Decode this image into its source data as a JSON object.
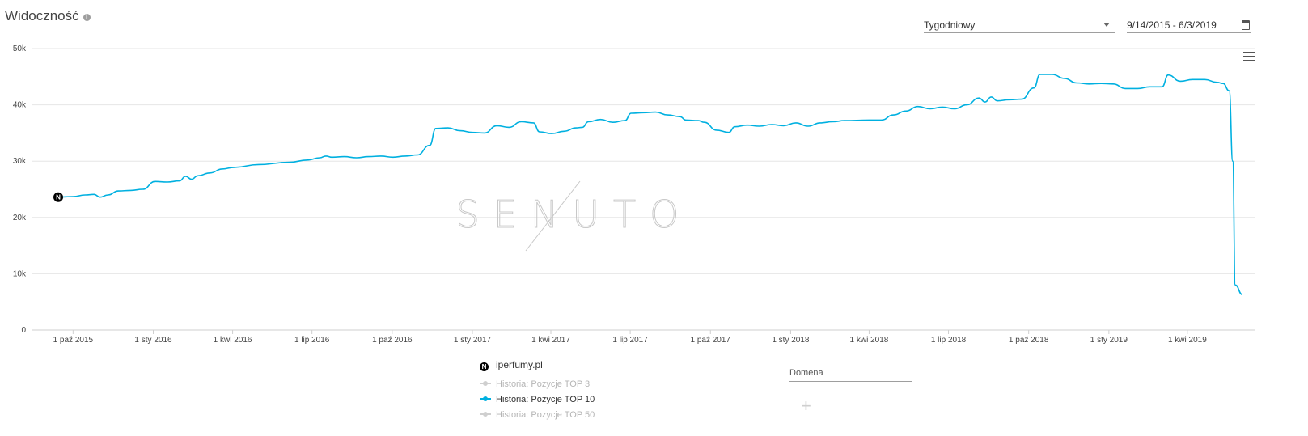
{
  "header": {
    "title": "Widoczność",
    "info_icon": "info-icon",
    "period_select": {
      "value": "Tygodniowy"
    },
    "date_range": {
      "value": "9/14/2015 - 6/3/2019",
      "icon": "calendar-icon"
    },
    "menu_icon": "hamburger-menu-icon"
  },
  "colors": {
    "series": "#00b0e0",
    "grid": "#e6e6e6",
    "axis_text": "#444444",
    "watermark": "#c8c8c8"
  },
  "watermark": "SENUTO",
  "chart_data": {
    "type": "line",
    "title": "Widoczność",
    "x_axis": {
      "type": "date",
      "range": [
        "2015-09-14",
        "2019-06-03"
      ],
      "tick_labels": [
        "1 paź 2015",
        "1 sty 2016",
        "1 kwi 2016",
        "1 lip 2016",
        "1 paź 2016",
        "1 sty 2017",
        "1 kwi 2017",
        "1 lip 2017",
        "1 paź 2017",
        "1 sty 2018",
        "1 kwi 2018",
        "1 lip 2018",
        "1 paź 2018",
        "1 sty 2019",
        "1 kwi 2019"
      ],
      "tick_dates": [
        "2015-10-01",
        "2016-01-01",
        "2016-04-01",
        "2016-07-01",
        "2016-10-01",
        "2017-01-01",
        "2017-04-01",
        "2017-07-01",
        "2017-10-01",
        "2018-01-01",
        "2018-04-01",
        "2018-07-01",
        "2018-10-01",
        "2019-01-01",
        "2019-04-01"
      ]
    },
    "y_axis": {
      "range": [
        0,
        50000
      ],
      "ticks": [
        0,
        10000,
        20000,
        30000,
        40000,
        50000
      ],
      "tick_labels": [
        "0",
        "10k",
        "20k",
        "30k",
        "40k",
        "50k"
      ]
    },
    "grid": true,
    "legend_position": "bottom-center",
    "series": [
      {
        "name": "Historia: Pozycje TOP 10",
        "color": "#00b0e0",
        "annotation": {
          "date": "2015-09-14",
          "value": 23600,
          "label": "N"
        },
        "points": [
          [
            "2015-09-14",
            23600
          ],
          [
            "2015-10-01",
            23700
          ],
          [
            "2015-10-15",
            24000
          ],
          [
            "2015-10-25",
            24100
          ],
          [
            "2015-11-01",
            23600
          ],
          [
            "2015-11-10",
            24000
          ],
          [
            "2015-11-22",
            24700
          ],
          [
            "2015-12-06",
            24800
          ],
          [
            "2015-12-20",
            25000
          ],
          [
            "2016-01-03",
            26400
          ],
          [
            "2016-01-17",
            26300
          ],
          [
            "2016-01-31",
            26500
          ],
          [
            "2016-02-07",
            27300
          ],
          [
            "2016-02-14",
            26800
          ],
          [
            "2016-02-21",
            27400
          ],
          [
            "2016-03-06",
            27900
          ],
          [
            "2016-03-20",
            28600
          ],
          [
            "2016-04-03",
            28900
          ],
          [
            "2016-05-01",
            29400
          ],
          [
            "2016-06-05",
            29800
          ],
          [
            "2016-06-26",
            30200
          ],
          [
            "2016-07-10",
            30600
          ],
          [
            "2016-07-17",
            30900
          ],
          [
            "2016-07-24",
            30700
          ],
          [
            "2016-08-07",
            30800
          ],
          [
            "2016-08-21",
            30600
          ],
          [
            "2016-09-04",
            30800
          ],
          [
            "2016-09-18",
            30900
          ],
          [
            "2016-10-02",
            30700
          ],
          [
            "2016-10-16",
            30900
          ],
          [
            "2016-10-30",
            31100
          ],
          [
            "2016-11-13",
            32800
          ],
          [
            "2016-11-20",
            35800
          ],
          [
            "2016-12-04",
            35900
          ],
          [
            "2016-12-18",
            35400
          ],
          [
            "2017-01-01",
            35100
          ],
          [
            "2017-01-15",
            35000
          ],
          [
            "2017-01-29",
            36300
          ],
          [
            "2017-02-12",
            36000
          ],
          [
            "2017-02-26",
            37000
          ],
          [
            "2017-03-12",
            36800
          ],
          [
            "2017-03-19",
            35200
          ],
          [
            "2017-04-02",
            34900
          ],
          [
            "2017-04-16",
            35300
          ],
          [
            "2017-04-30",
            35900
          ],
          [
            "2017-05-07",
            36000
          ],
          [
            "2017-05-14",
            37000
          ],
          [
            "2017-05-28",
            37400
          ],
          [
            "2017-06-11",
            36900
          ],
          [
            "2017-06-25",
            37200
          ],
          [
            "2017-07-02",
            38500
          ],
          [
            "2017-07-16",
            38600
          ],
          [
            "2017-07-30",
            38700
          ],
          [
            "2017-08-13",
            38200
          ],
          [
            "2017-08-27",
            37900
          ],
          [
            "2017-09-03",
            37300
          ],
          [
            "2017-09-17",
            37200
          ],
          [
            "2017-09-24",
            36900
          ],
          [
            "2017-10-08",
            35500
          ],
          [
            "2017-10-22",
            35100
          ],
          [
            "2017-10-29",
            36100
          ],
          [
            "2017-11-12",
            36400
          ],
          [
            "2017-11-26",
            36200
          ],
          [
            "2017-12-10",
            36500
          ],
          [
            "2017-12-24",
            36300
          ],
          [
            "2018-01-07",
            36800
          ],
          [
            "2018-01-21",
            36200
          ],
          [
            "2018-02-04",
            36800
          ],
          [
            "2018-02-18",
            37000
          ],
          [
            "2018-03-04",
            37200
          ],
          [
            "2018-04-01",
            37300
          ],
          [
            "2018-04-15",
            37300
          ],
          [
            "2018-04-29",
            38200
          ],
          [
            "2018-05-13",
            38900
          ],
          [
            "2018-05-27",
            39700
          ],
          [
            "2018-06-10",
            39300
          ],
          [
            "2018-06-24",
            39600
          ],
          [
            "2018-07-08",
            39300
          ],
          [
            "2018-07-22",
            40000
          ],
          [
            "2018-08-05",
            41200
          ],
          [
            "2018-08-12",
            40500
          ],
          [
            "2018-08-19",
            41400
          ],
          [
            "2018-08-26",
            40700
          ],
          [
            "2018-09-09",
            40900
          ],
          [
            "2018-09-23",
            41000
          ],
          [
            "2018-10-07",
            43000
          ],
          [
            "2018-10-14",
            45400
          ],
          [
            "2018-10-28",
            45400
          ],
          [
            "2018-11-11",
            44700
          ],
          [
            "2018-11-25",
            43900
          ],
          [
            "2018-12-09",
            43700
          ],
          [
            "2018-12-23",
            43800
          ],
          [
            "2019-01-06",
            43700
          ],
          [
            "2019-01-20",
            42900
          ],
          [
            "2019-02-03",
            42900
          ],
          [
            "2019-02-17",
            43200
          ],
          [
            "2019-03-03",
            43200
          ],
          [
            "2019-03-10",
            45300
          ],
          [
            "2019-03-24",
            44200
          ],
          [
            "2019-04-07",
            44500
          ],
          [
            "2019-04-21",
            44500
          ],
          [
            "2019-05-05",
            44000
          ],
          [
            "2019-05-12",
            43800
          ],
          [
            "2019-05-19",
            42500
          ],
          [
            "2019-05-23",
            30000
          ],
          [
            "2019-05-26",
            8000
          ],
          [
            "2019-06-03",
            6300
          ]
        ]
      }
    ]
  },
  "legend": {
    "domain": {
      "badge": "N",
      "name": "iperfumy.pl"
    },
    "items": [
      {
        "label": "Historia: Pozycje TOP 3",
        "active": false
      },
      {
        "label": "Historia: Pozycje TOP 10",
        "active": true
      },
      {
        "label": "Historia: Pozycje TOP 50",
        "active": false
      }
    ]
  },
  "domain_input": {
    "placeholder": "Domena"
  },
  "add_icon": "plus-icon"
}
